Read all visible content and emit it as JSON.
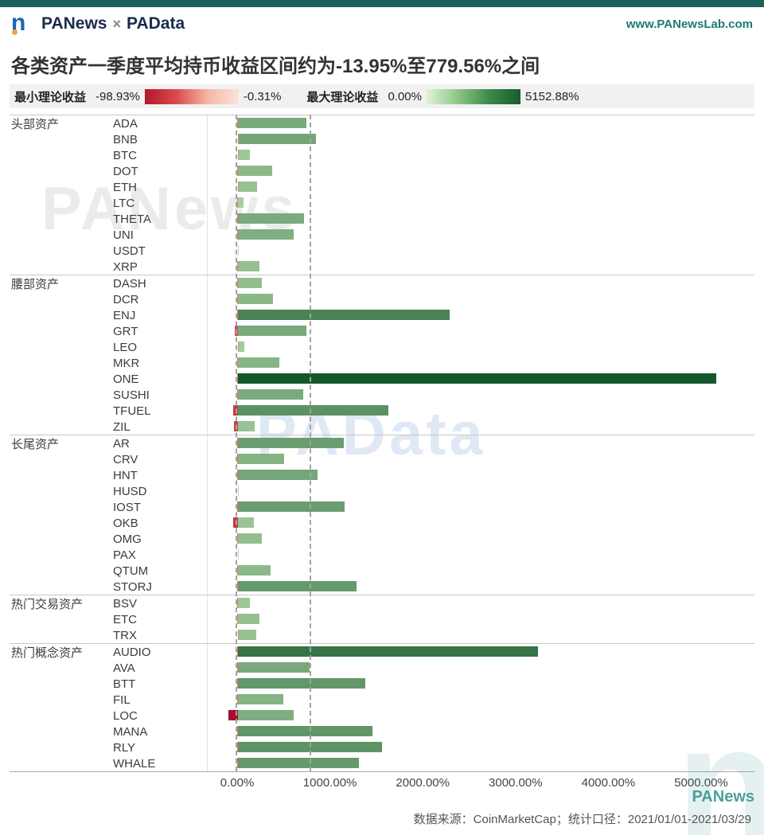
{
  "header": {
    "logo_letter": "n",
    "brand_left": "PANews",
    "brand_sep": "×",
    "brand_right": "PAData",
    "url": "www.PANewsLab.com"
  },
  "title": "各类资产一季度平均持币收益区间约为-13.95%至779.56%之间",
  "legend": {
    "min_label": "最小理论收益",
    "min_from": "-98.93%",
    "min_to": "-0.31%",
    "max_label": "最大理论收益",
    "max_from": "0.00%",
    "max_to": "5152.88%"
  },
  "chart_data": {
    "type": "bar",
    "orientation": "horizontal",
    "title": "各类资产一季度平均持币收益区间约为-13.95%至779.56%之间",
    "x_ticks": [
      "0.00%",
      "1000.00%",
      "2000.00%",
      "3000.00%",
      "4000.00%",
      "5000.00%"
    ],
    "x_tick_values": [
      0,
      1000,
      2000,
      3000,
      4000,
      5000
    ],
    "xlim": [
      -150,
      5550
    ],
    "reference_lines": [
      -13.95,
      779.56
    ],
    "value_range": {
      "min_return_min": -98.93,
      "min_return_max": -0.31,
      "max_return_min": 0.0,
      "max_return_max": 5152.88
    },
    "colors": {
      "green_light": "#b6dcac",
      "green_dark": "#14572a",
      "red_light": "#f08a7a",
      "red_dark": "#a50f2d"
    },
    "groups": [
      {
        "name": "头部资产",
        "assets": [
          {
            "label": "ADA",
            "max": 737,
            "min": -6
          },
          {
            "label": "BNB",
            "max": 840,
            "min": -4
          },
          {
            "label": "BTC",
            "max": 128,
            "min": -2
          },
          {
            "label": "DOT",
            "max": 370,
            "min": -8
          },
          {
            "label": "ETH",
            "max": 205,
            "min": -3
          },
          {
            "label": "LTC",
            "max": 60,
            "min": -6
          },
          {
            "label": "THETA",
            "max": 710,
            "min": -10
          },
          {
            "label": "UNI",
            "max": 600,
            "min": -9
          },
          {
            "label": "USDT",
            "max": 2,
            "min": -0.31
          },
          {
            "label": "XRP",
            "max": 230,
            "min": -5
          }
        ]
      },
      {
        "name": "腰部资产",
        "assets": [
          {
            "label": "DASH",
            "max": 255,
            "min": -5
          },
          {
            "label": "DCR",
            "max": 377,
            "min": -6
          },
          {
            "label": "ENJ",
            "max": 2280,
            "min": -10
          },
          {
            "label": "GRT",
            "max": 737,
            "min": -35
          },
          {
            "label": "LEO",
            "max": 70,
            "min": -2
          },
          {
            "label": "MKR",
            "max": 446,
            "min": -6
          },
          {
            "label": "ONE",
            "max": 5152.88,
            "min": -12
          },
          {
            "label": "SUSHI",
            "max": 705,
            "min": -10
          },
          {
            "label": "TFUEL",
            "max": 1620,
            "min": -50
          },
          {
            "label": "ZIL",
            "max": 180,
            "min": -42
          }
        ]
      },
      {
        "name": "长尾资产",
        "assets": [
          {
            "label": "AR",
            "max": 1140,
            "min": -10
          },
          {
            "label": "CRV",
            "max": 497,
            "min": -12
          },
          {
            "label": "HNT",
            "max": 857,
            "min": -8
          },
          {
            "label": "HUSD",
            "max": 2,
            "min": -0.5
          },
          {
            "label": "IOST",
            "max": 1149,
            "min": -9
          },
          {
            "label": "OKB",
            "max": 170,
            "min": -52
          },
          {
            "label": "OMG",
            "max": 257,
            "min": -7
          },
          {
            "label": "PAX",
            "max": 2,
            "min": -0.5
          },
          {
            "label": "QTUM",
            "max": 351,
            "min": -6
          },
          {
            "label": "STORJ",
            "max": 1278,
            "min": -8
          }
        ]
      },
      {
        "name": "热门交易资产",
        "assets": [
          {
            "label": "BSV",
            "max": 128,
            "min": -8
          },
          {
            "label": "ETC",
            "max": 231,
            "min": -5
          },
          {
            "label": "TRX",
            "max": 197,
            "min": -4
          }
        ]
      },
      {
        "name": "热门概念资产",
        "assets": [
          {
            "label": "AUDIO",
            "max": 3232,
            "min": -12
          },
          {
            "label": "AVA",
            "max": 771,
            "min": -10
          },
          {
            "label": "BTT",
            "max": 1372,
            "min": -9
          },
          {
            "label": "FIL",
            "max": 488,
            "min": -11
          },
          {
            "label": "LOC",
            "max": 600,
            "min": -98.93
          },
          {
            "label": "MANA",
            "max": 1449,
            "min": -10
          },
          {
            "label": "RLY",
            "max": 1552,
            "min": -8
          },
          {
            "label": "WHALE",
            "max": 1303,
            "min": -9
          }
        ]
      }
    ]
  },
  "watermarks": {
    "wm1": "PANews",
    "wm2": "PAData",
    "wm3": "PANews",
    "wm_big": "n"
  },
  "footer": {
    "text": "数据来源：CoinMarketCap；统计口径：2021/01/01-2021/03/29"
  }
}
